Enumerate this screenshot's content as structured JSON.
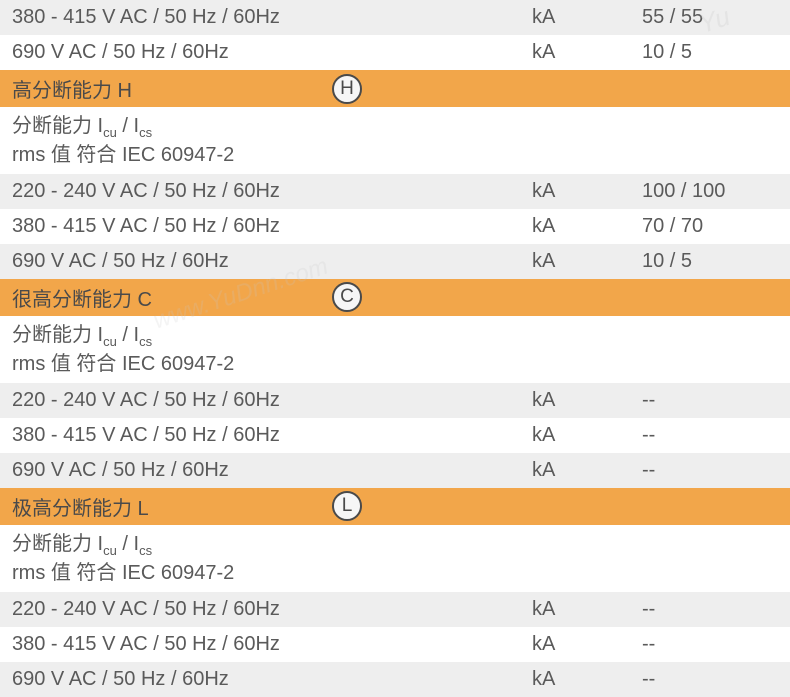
{
  "watermark1": "Yu",
  "watermark2": "www.YuDnn.com",
  "topRows": [
    {
      "label": "380 - 415 V AC / 50 Hz / 60Hz",
      "unit": "kA",
      "value": "55 / 55",
      "bg": "light"
    },
    {
      "label": "690 V AC / 50 Hz / 60Hz",
      "unit": "kA",
      "value": "10 / 5",
      "bg": "white"
    }
  ],
  "sections": [
    {
      "title": "高分断能力 H",
      "badge": "H",
      "subheader_line1_pre": "分断能力 I",
      "subheader_line1_sub1": "cu",
      "subheader_line1_mid": " / I",
      "subheader_line1_sub2": "cs",
      "subheader_line2": "rms 值 符合 IEC 60947-2",
      "rows": [
        {
          "label": "220 - 240 V AC / 50 Hz / 60Hz",
          "unit": "kA",
          "value": "100 / 100",
          "bg": "light"
        },
        {
          "label": "380 - 415 V AC / 50 Hz / 60Hz",
          "unit": "kA",
          "value": "70 / 70",
          "bg": "white"
        },
        {
          "label": "690 V AC / 50 Hz / 60Hz",
          "unit": "kA",
          "value": "10 / 5",
          "bg": "light"
        }
      ]
    },
    {
      "title": "很高分断能力 C",
      "badge": "C",
      "subheader_line1_pre": "分断能力 I",
      "subheader_line1_sub1": "cu",
      "subheader_line1_mid": " / I",
      "subheader_line1_sub2": "cs",
      "subheader_line2": "rms 值 符合 IEC 60947-2",
      "rows": [
        {
          "label": "220 - 240 V AC / 50 Hz / 60Hz",
          "unit": "kA",
          "value": "--",
          "bg": "light"
        },
        {
          "label": "380 - 415 V AC / 50 Hz / 60Hz",
          "unit": "kA",
          "value": "--",
          "bg": "white"
        },
        {
          "label": "690 V AC / 50 Hz / 60Hz",
          "unit": "kA",
          "value": "--",
          "bg": "light"
        }
      ]
    },
    {
      "title": "极高分断能力 L",
      "badge": "L",
      "subheader_line1_pre": "分断能力 I",
      "subheader_line1_sub1": "cu",
      "subheader_line1_mid": " / I",
      "subheader_line1_sub2": "cs",
      "subheader_line2": "rms 值 符合 IEC 60947-2",
      "rows": [
        {
          "label": "220 - 240 V AC / 50 Hz / 60Hz",
          "unit": "kA",
          "value": "--",
          "bg": "light"
        },
        {
          "label": "380 - 415 V AC / 50 Hz / 60Hz",
          "unit": "kA",
          "value": "--",
          "bg": "white"
        },
        {
          "label": "690 V AC / 50 Hz / 60Hz",
          "unit": "kA",
          "value": "--",
          "bg": "light"
        }
      ]
    }
  ]
}
